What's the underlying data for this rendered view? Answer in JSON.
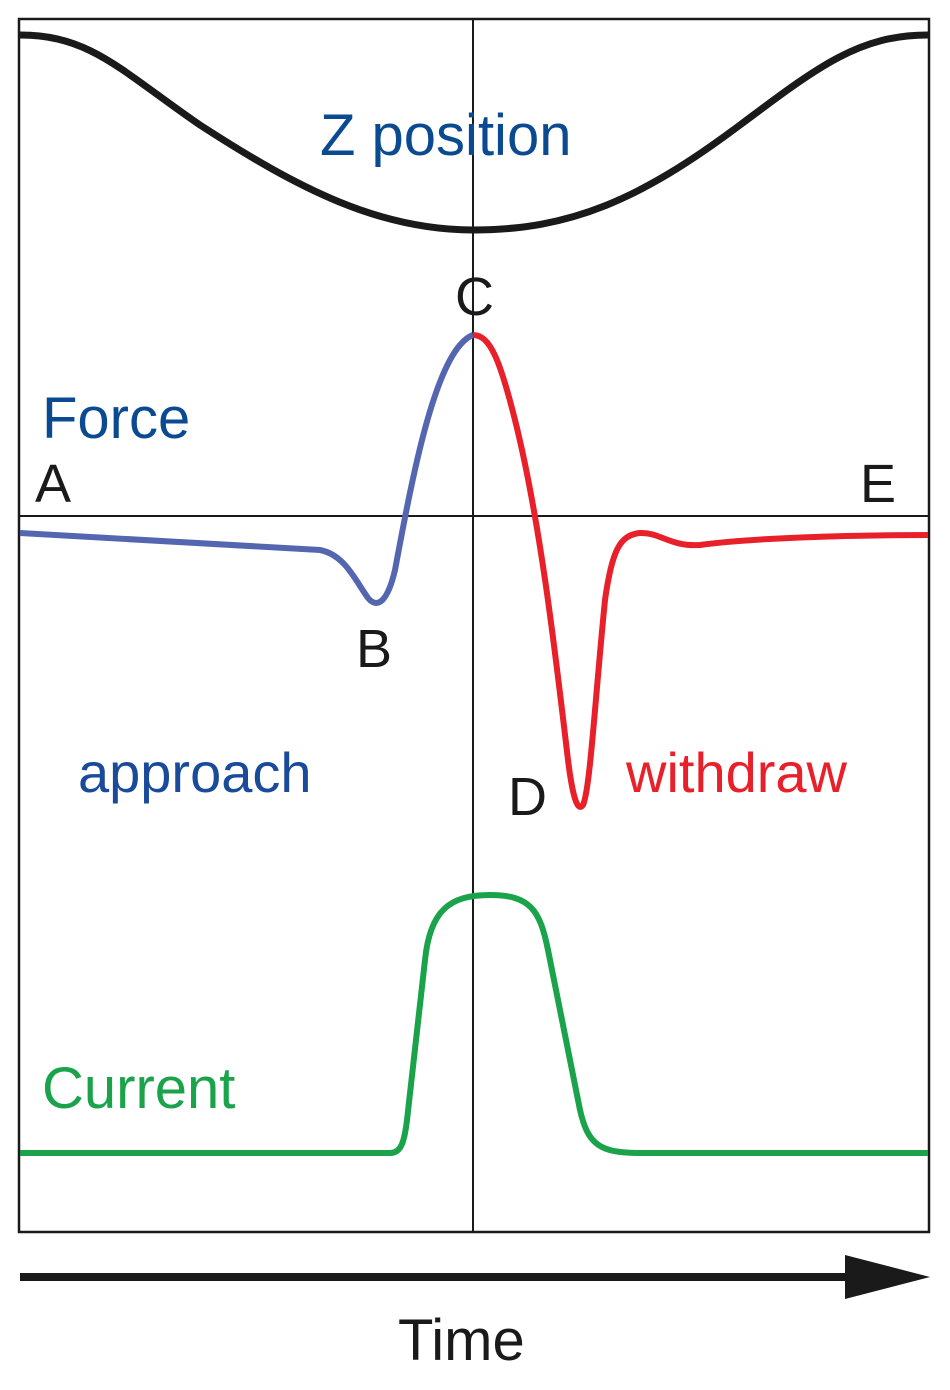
{
  "curves": {
    "z_position": "Z position",
    "force": "Force",
    "current": "Current"
  },
  "points": {
    "a": "A",
    "b": "B",
    "c": "C",
    "d": "D",
    "e": "E"
  },
  "phases": {
    "approach": "approach",
    "withdraw": "withdraw"
  },
  "axis": {
    "label": "Time"
  }
}
